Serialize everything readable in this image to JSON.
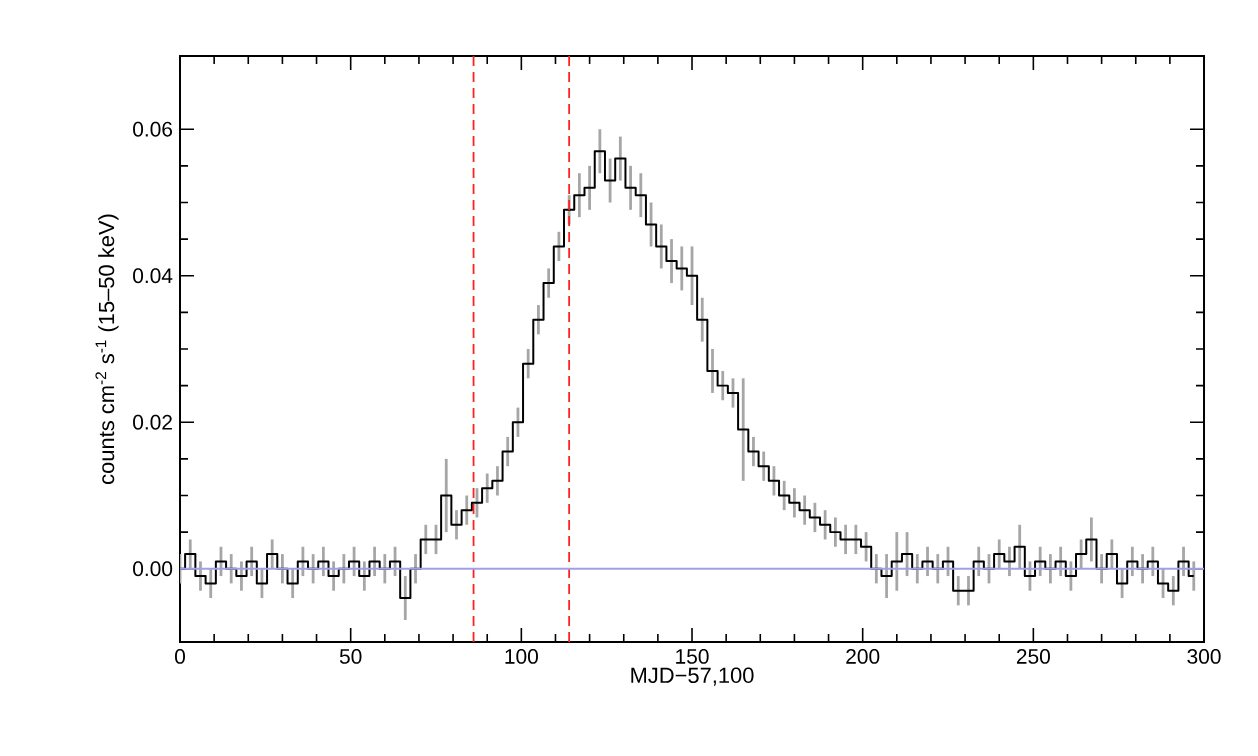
{
  "chart_data": {
    "type": "step",
    "xlabel": "MJD−57,100",
    "ylabel": "counts cm$^{-2}$ s$^{-1}$ (15–50 keV)",
    "x": [
      0,
      3,
      6,
      9,
      12,
      15,
      18,
      21,
      24,
      27,
      30,
      33,
      36,
      39,
      42,
      45,
      48,
      51,
      54,
      57,
      60,
      63,
      66,
      69,
      72,
      75,
      78,
      81,
      84,
      87,
      90,
      93,
      96,
      99,
      102,
      105,
      108,
      111,
      114,
      117,
      120,
      123,
      126,
      129,
      132,
      135,
      138,
      141,
      144,
      147,
      150,
      153,
      156,
      159,
      162,
      165,
      168,
      171,
      174,
      177,
      180,
      183,
      186,
      189,
      192,
      195,
      198,
      201,
      204,
      207,
      210,
      213,
      216,
      219,
      222,
      225,
      228,
      231,
      234,
      237,
      240,
      243,
      246,
      249,
      252,
      255,
      258,
      261,
      264,
      267,
      270,
      273,
      276,
      279,
      282,
      285,
      288,
      291,
      294,
      297
    ],
    "series": [
      {
        "color": "#000000",
        "values": [
          0.0,
          0.002,
          -0.001,
          -0.002,
          0.001,
          0.0,
          -0.001,
          0.001,
          -0.002,
          0.002,
          0.0,
          -0.002,
          0.001,
          0.0,
          0.001,
          -0.001,
          0.0,
          0.001,
          -0.001,
          0.001,
          0.0,
          0.001,
          -0.004,
          0.0,
          0.004,
          0.004,
          0.01,
          0.006,
          0.008,
          0.009,
          0.011,
          0.012,
          0.016,
          0.02,
          0.028,
          0.034,
          0.039,
          0.044,
          0.049,
          0.051,
          0.052,
          0.057,
          0.053,
          0.056,
          0.052,
          0.051,
          0.047,
          0.044,
          0.042,
          0.041,
          0.04,
          0.034,
          0.027,
          0.025,
          0.024,
          0.019,
          0.016,
          0.014,
          0.012,
          0.01,
          0.009,
          0.008,
          0.007,
          0.006,
          0.005,
          0.004,
          0.004,
          0.003,
          0.0,
          -0.001,
          0.001,
          0.002,
          0.0,
          0.001,
          0.0,
          0.001,
          -0.003,
          -0.003,
          0.001,
          0.0,
          0.002,
          0.001,
          0.003,
          -0.001,
          0.001,
          0.0,
          0.001,
          -0.001,
          0.002,
          0.004,
          0.0,
          0.002,
          -0.002,
          0.001,
          0.0,
          0.001,
          -0.002,
          -0.003,
          0.001,
          -0.001
        ],
        "errors": [
          0.002,
          0.002,
          0.002,
          0.002,
          0.002,
          0.002,
          0.002,
          0.002,
          0.002,
          0.002,
          0.002,
          0.002,
          0.002,
          0.002,
          0.002,
          0.002,
          0.002,
          0.002,
          0.002,
          0.002,
          0.002,
          0.002,
          0.003,
          0.002,
          0.002,
          0.002,
          0.005,
          0.002,
          0.002,
          0.002,
          0.002,
          0.002,
          0.002,
          0.002,
          0.002,
          0.002,
          0.002,
          0.002,
          0.002,
          0.003,
          0.003,
          0.003,
          0.003,
          0.003,
          0.003,
          0.003,
          0.003,
          0.003,
          0.003,
          0.003,
          0.004,
          0.003,
          0.003,
          0.002,
          0.002,
          0.007,
          0.002,
          0.002,
          0.002,
          0.002,
          0.002,
          0.002,
          0.002,
          0.002,
          0.002,
          0.002,
          0.002,
          0.002,
          0.002,
          0.003,
          0.004,
          0.003,
          0.002,
          0.002,
          0.002,
          0.002,
          0.002,
          0.002,
          0.002,
          0.002,
          0.002,
          0.002,
          0.003,
          0.002,
          0.002,
          0.002,
          0.002,
          0.002,
          0.002,
          0.003,
          0.002,
          0.002,
          0.002,
          0.002,
          0.002,
          0.002,
          0.002,
          0.002,
          0.002,
          0.002
        ]
      }
    ],
    "xlim": [
      0,
      300
    ],
    "ylim": [
      -0.01,
      0.07
    ],
    "xticks": [
      0,
      50,
      100,
      150,
      200,
      250,
      300
    ],
    "yticks": [
      {
        "value": 0,
        "label": "0.00"
      },
      {
        "value": 0.02,
        "label": "0.02"
      },
      {
        "value": 0.04,
        "label": "0.04"
      },
      {
        "value": 0.06,
        "label": "0.06"
      }
    ],
    "ref_lines": [
      {
        "axis": "x",
        "value": 86,
        "color": "#ff2020",
        "line_style": "dashed"
      },
      {
        "axis": "x",
        "value": 114,
        "color": "#ff2020",
        "line_style": "dashed"
      },
      {
        "axis": "y",
        "value": 0,
        "color": "#a0a0e8",
        "line_style": "solid"
      }
    ]
  }
}
